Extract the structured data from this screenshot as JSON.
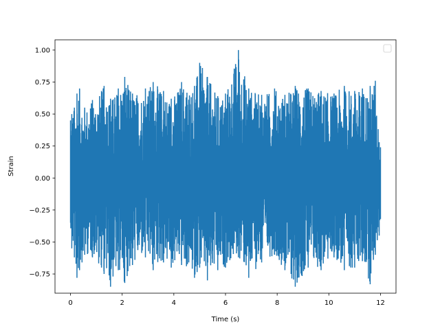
{
  "chart_data": {
    "type": "line",
    "title": "",
    "xlabel": "Time (s)",
    "ylabel": "Strain",
    "xlim": [
      -0.6,
      12.6
    ],
    "ylim": [
      -0.9,
      1.08
    ],
    "xticks": [
      0,
      2,
      4,
      6,
      8,
      10,
      12
    ],
    "xtick_labels": [
      "0",
      "2",
      "4",
      "6",
      "8",
      "10",
      "12"
    ],
    "yticks": [
      -0.75,
      -0.5,
      -0.25,
      0.0,
      0.25,
      0.5,
      0.75,
      1.0
    ],
    "ytick_labels": [
      "−0.75",
      "−0.50",
      "−0.25",
      "0.00",
      "0.25",
      "0.50",
      "0.75",
      "1.00"
    ],
    "grid": false,
    "legend": "top-right",
    "series": [
      {
        "color": "#1f77b4",
        "x_range": [
          0,
          12
        ],
        "envelope": [
          {
            "x": 0.0,
            "min": -0.35,
            "max": 0.45
          },
          {
            "x": 0.05,
            "min": -0.55,
            "max": 0.5
          },
          {
            "x": 0.15,
            "min": -0.62,
            "max": 0.55
          },
          {
            "x": 0.25,
            "min": -0.78,
            "max": 0.66
          },
          {
            "x": 0.35,
            "min": -0.72,
            "max": 0.7
          },
          {
            "x": 0.55,
            "min": -0.6,
            "max": 0.55
          },
          {
            "x": 0.85,
            "min": -0.62,
            "max": 0.61
          },
          {
            "x": 1.2,
            "min": -0.7,
            "max": 0.68
          },
          {
            "x": 1.3,
            "min": -0.75,
            "max": 0.72
          },
          {
            "x": 1.55,
            "min": -0.85,
            "max": 0.62
          },
          {
            "x": 1.85,
            "min": -0.72,
            "max": 0.7
          },
          {
            "x": 2.1,
            "min": -0.82,
            "max": 0.79
          },
          {
            "x": 2.4,
            "min": -0.68,
            "max": 0.66
          },
          {
            "x": 2.9,
            "min": -0.62,
            "max": 0.7
          },
          {
            "x": 3.2,
            "min": -0.72,
            "max": 0.75
          },
          {
            "x": 3.6,
            "min": -0.66,
            "max": 0.68
          },
          {
            "x": 3.9,
            "min": -0.7,
            "max": 0.62
          },
          {
            "x": 4.3,
            "min": -0.68,
            "max": 0.75
          },
          {
            "x": 4.8,
            "min": -0.78,
            "max": 0.72
          },
          {
            "x": 5.0,
            "min": -0.7,
            "max": 0.9
          },
          {
            "x": 5.3,
            "min": -0.8,
            "max": 0.79
          },
          {
            "x": 5.7,
            "min": -0.72,
            "max": 0.64
          },
          {
            "x": 6.0,
            "min": -0.7,
            "max": 0.66
          },
          {
            "x": 6.5,
            "min": -0.62,
            "max": 1.0
          },
          {
            "x": 6.9,
            "min": -0.78,
            "max": 0.7
          },
          {
            "x": 7.4,
            "min": -0.66,
            "max": 0.65
          },
          {
            "x": 7.9,
            "min": -0.6,
            "max": 0.7
          },
          {
            "x": 8.3,
            "min": -0.72,
            "max": 0.65
          },
          {
            "x": 8.7,
            "min": -0.85,
            "max": 0.72
          },
          {
            "x": 9.2,
            "min": -0.7,
            "max": 0.7
          },
          {
            "x": 9.7,
            "min": -0.72,
            "max": 0.68
          },
          {
            "x": 10.2,
            "min": -0.62,
            "max": 0.66
          },
          {
            "x": 10.6,
            "min": -0.72,
            "max": 0.72
          },
          {
            "x": 11.0,
            "min": -0.7,
            "max": 0.68
          },
          {
            "x": 11.3,
            "min": -0.65,
            "max": 0.7
          },
          {
            "x": 11.6,
            "min": -0.83,
            "max": 0.72
          },
          {
            "x": 11.8,
            "min": -0.6,
            "max": 0.76
          },
          {
            "x": 11.95,
            "min": -0.45,
            "max": 0.28
          },
          {
            "x": 12.0,
            "min": -0.32,
            "max": 0.24
          }
        ]
      }
    ]
  }
}
